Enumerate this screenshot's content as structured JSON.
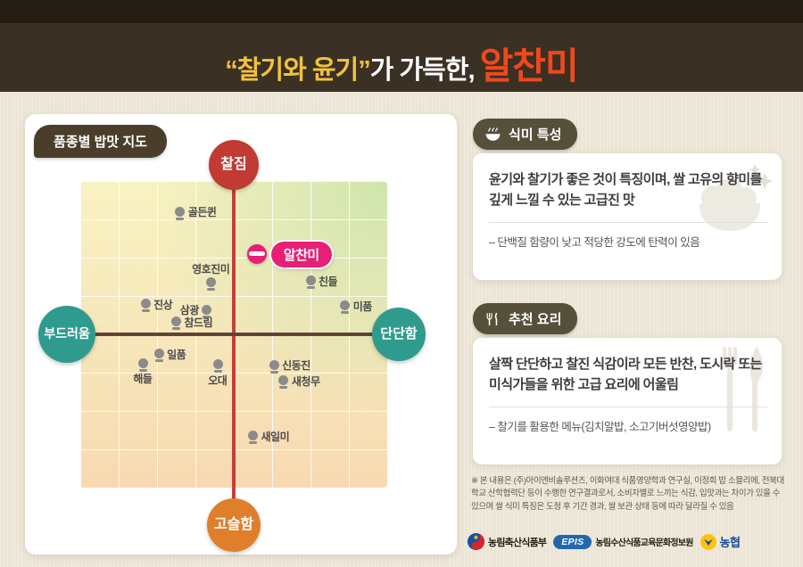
{
  "header": {
    "quoted": "“찰기와 윤기”",
    "middle": "가 가득한,",
    "brand": "알찬미"
  },
  "map": {
    "badge": "품종별 밥맛 지도"
  },
  "chart_data": {
    "type": "scatter",
    "title": "품종별 밥맛 지도",
    "axes": {
      "top": "찰짐",
      "bottom": "고슬함",
      "left": "부드러움",
      "right": "단단함"
    },
    "x_axis": {
      "label_left": "부드러움",
      "label_right": "단단함",
      "range": [
        -4,
        4
      ]
    },
    "y_axis": {
      "label_top": "찰짐",
      "label_bottom": "고슬함",
      "range": [
        -4,
        4
      ]
    },
    "grid": true,
    "highlight": {
      "label": "알찬미",
      "x": 0.6,
      "y": 2.1
    },
    "points": [
      {
        "label": "골든퀸",
        "x": -1.4,
        "y": 3.2,
        "side": "right"
      },
      {
        "label": "영호진미",
        "x": -0.6,
        "y": 1.35,
        "side": "above"
      },
      {
        "label": "친들",
        "x": 2.0,
        "y": 1.4,
        "side": "right"
      },
      {
        "label": "미품",
        "x": 2.9,
        "y": 0.75,
        "side": "right"
      },
      {
        "label": "진상",
        "x": -2.3,
        "y": 0.8,
        "side": "right"
      },
      {
        "label": "삼광",
        "x": -0.7,
        "y": 0.65,
        "side": "left"
      },
      {
        "label": "참드림",
        "x": -1.5,
        "y": 0.33,
        "side": "right"
      },
      {
        "label": "일품",
        "x": -1.95,
        "y": -0.5,
        "side": "right"
      },
      {
        "label": "해들",
        "x": -2.35,
        "y": -0.75,
        "side": "below"
      },
      {
        "label": "오대",
        "x": -0.4,
        "y": -0.78,
        "side": "below"
      },
      {
        "label": "신동진",
        "x": 1.05,
        "y": -0.8,
        "side": "right"
      },
      {
        "label": "새청무",
        "x": 1.3,
        "y": -1.2,
        "side": "right"
      },
      {
        "label": "새일미",
        "x": 0.5,
        "y": -2.65,
        "side": "right"
      }
    ]
  },
  "sections": [
    {
      "title": "식미 특성",
      "icon": "rice-bowl-icon",
      "body": "윤기와 찰기가 좋은 것이 특징이며, 쌀 고유의 향미를 깊게 느낄 수 있는 고급진 맛",
      "note": "–  단백질 함량이 낮고 적당한 강도에 탄력이 있음"
    },
    {
      "title": "추천 요리",
      "icon": "cutlery-icon",
      "body": "살짝 단단하고 찰진 식감이라 모든 반찬, 도시락 또는 미식가들을 위한 고급 요리에 어울림",
      "note": "–  찰기를 활용한 메뉴(김치알밥, 소고기버섯영양밥)"
    }
  ],
  "footnote": "※ 본 내용은 (주)아이엔비솔루션즈, 이화여대 식품영양학과 연구실, 이정희 밥 소믈리에, 전북대학교 산학협력단 등이 수행한 연구결과로서, 소비자별로 느끼는 식감, 입맛과는 차이가 있을 수 있으며 쌀 식미 특징은 도정 후 기간 경과, 쌀 보관 상태 등에 따라 달라질 수 있음",
  "footer": {
    "ministry": "농림축산식품부",
    "epis_label": "EPIS",
    "institute": "농림수산식품교육문화정보원",
    "nonghyup": "농협"
  },
  "colors": {
    "brand_orange": "#f1481c",
    "gold": "#f2c23e",
    "highlight_pink": "#e81f76",
    "axis_teal": "#2f9b8e",
    "axis_red": "#c13a33",
    "axis_orange": "#df7f2c"
  }
}
